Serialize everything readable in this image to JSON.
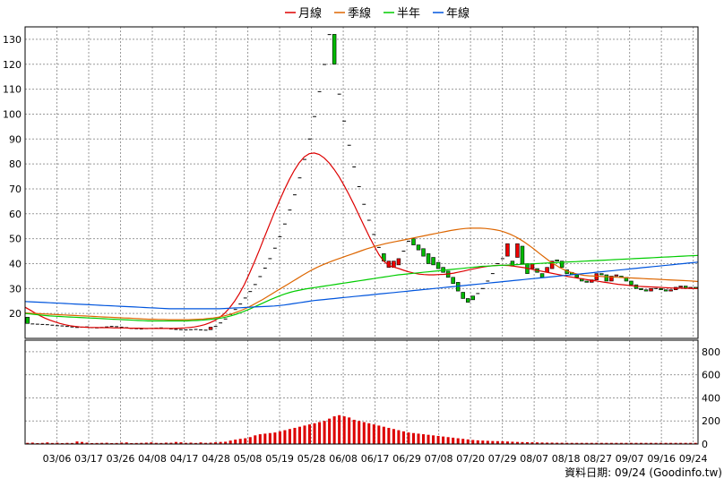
{
  "chart_data": {
    "type": "candlestick",
    "legend": {
      "placement": "top-center",
      "items": [
        {
          "name": "月線",
          "color": "#dd0000"
        },
        {
          "name": "季線",
          "color": "#dd6600"
        },
        {
          "name": "半年",
          "color": "#00cc00"
        },
        {
          "name": "年線",
          "color": "#0055dd"
        }
      ]
    },
    "price_axis": {
      "side": "left",
      "ylim": [
        10,
        135
      ],
      "ticks": [
        20,
        30,
        40,
        50,
        60,
        70,
        80,
        90,
        100,
        110,
        120,
        130
      ]
    },
    "volume_axis": {
      "side": "right",
      "ylim": [
        0,
        900
      ],
      "ticks": [
        0,
        200,
        400,
        600,
        800
      ]
    },
    "x_ticks": [
      "03/06",
      "03/17",
      "03/26",
      "04/08",
      "04/17",
      "04/28",
      "05/08",
      "05/19",
      "05/28",
      "06/08",
      "06/17",
      "06/29",
      "07/08",
      "07/20",
      "07/29",
      "08/07",
      "08/18",
      "08/27",
      "09/07",
      "09/16",
      "09/24"
    ],
    "footer": "資料日期: 09/24 (Goodinfo.tw)",
    "grid": true,
    "colors": {
      "up": "#ee0000",
      "down": "#00bb00",
      "volume": "#dd0000",
      "grid": "#999999"
    },
    "candles": [
      [
        18.5,
        16.0
      ],
      [
        15.8,
        15.8
      ],
      [
        15.7,
        15.7
      ],
      [
        15.6,
        15.6
      ],
      [
        15.5,
        15.5
      ],
      [
        15.3,
        15.3
      ],
      [
        15.1,
        15.1
      ],
      [
        15.0,
        15.0
      ],
      [
        14.8,
        14.8
      ],
      [
        14.6,
        14.6
      ],
      [
        14.4,
        14.4
      ],
      [
        14.5,
        14.5
      ],
      [
        14.6,
        14.6
      ],
      [
        14.3,
        14.3
      ],
      [
        14.2,
        14.2
      ],
      [
        14.4,
        14.4
      ],
      [
        14.6,
        14.6
      ],
      [
        14.8,
        14.8
      ],
      [
        14.7,
        14.7
      ],
      [
        14.5,
        14.5
      ],
      [
        14.3,
        14.3
      ],
      [
        14.0,
        14.0
      ],
      [
        13.9,
        13.9
      ],
      [
        13.8,
        13.8
      ],
      [
        13.9,
        13.9
      ],
      [
        14.0,
        14.0
      ],
      [
        14.1,
        14.1
      ],
      [
        14.2,
        14.2
      ],
      [
        14.0,
        14.0
      ],
      [
        13.8,
        13.8
      ],
      [
        13.6,
        13.6
      ],
      [
        13.5,
        13.5
      ],
      [
        13.4,
        13.4
      ],
      [
        13.5,
        13.5
      ],
      [
        13.6,
        13.6
      ],
      [
        13.4,
        13.4
      ],
      [
        13.3,
        13.3
      ],
      [
        13.5,
        14.5
      ],
      [
        14.8,
        14.8
      ],
      [
        16.2,
        16.2
      ],
      [
        17.8,
        17.8
      ],
      [
        19.6,
        19.6
      ],
      [
        21.6,
        21.6
      ],
      [
        23.8,
        23.8
      ],
      [
        26.2,
        26.2
      ],
      [
        28.8,
        28.8
      ],
      [
        31.6,
        31.6
      ],
      [
        34.8,
        34.8
      ],
      [
        38.2,
        38.2
      ],
      [
        42.0,
        42.0
      ],
      [
        46.2,
        46.2
      ],
      [
        50.8,
        50.8
      ],
      [
        55.9,
        55.9
      ],
      [
        61.5,
        61.5
      ],
      [
        67.6,
        67.6
      ],
      [
        74.4,
        74.4
      ],
      [
        81.8,
        81.8
      ],
      [
        90.0,
        90.0
      ],
      [
        99.0,
        99.0
      ],
      [
        109.0,
        109.0
      ],
      [
        119.9,
        119.9
      ],
      [
        131.9,
        131.9
      ],
      [
        132.0,
        120.0
      ],
      [
        108.0,
        108.0
      ],
      [
        97.2,
        97.2
      ],
      [
        87.5,
        87.5
      ],
      [
        78.8,
        78.8
      ],
      [
        70.9,
        70.9
      ],
      [
        63.8,
        63.8
      ],
      [
        57.4,
        57.4
      ],
      [
        51.7,
        51.7
      ],
      [
        46.5,
        46.5
      ],
      [
        44.0,
        41.0
      ],
      [
        38.5,
        41.0
      ],
      [
        38.5,
        41.0
      ],
      [
        39.5,
        42.0
      ],
      [
        45.0,
        45.0
      ],
      [
        49.0,
        49.0
      ],
      [
        50.0,
        47.5
      ],
      [
        47.5,
        45.5
      ],
      [
        46.0,
        43.0
      ],
      [
        44.0,
        40.0
      ],
      [
        42.5,
        39.5
      ],
      [
        40.5,
        38.0
      ],
      [
        38.5,
        36.5
      ],
      [
        37.0,
        34.5
      ],
      [
        34.5,
        32.0
      ],
      [
        32.5,
        29.0
      ],
      [
        28.5,
        26.0
      ],
      [
        26.0,
        24.5
      ],
      [
        27.0,
        25.5
      ],
      [
        28.0,
        28.0
      ],
      [
        30.0,
        30.0
      ],
      [
        33.0,
        33.0
      ],
      [
        36.0,
        36.0
      ],
      [
        40.0,
        40.0
      ],
      [
        42.0,
        42.0
      ],
      [
        43.0,
        48.0
      ],
      [
        41.0,
        39.0
      ],
      [
        42.5,
        48.0
      ],
      [
        47.0,
        40.0
      ],
      [
        40.0,
        36.0
      ],
      [
        38.0,
        40.0
      ],
      [
        38.0,
        36.5
      ],
      [
        36.0,
        34.5
      ],
      [
        36.5,
        38.5
      ],
      [
        38.0,
        41.0
      ],
      [
        41.5,
        41.0
      ],
      [
        41.0,
        38.5
      ],
      [
        37.5,
        36.0
      ],
      [
        36.5,
        35.5
      ],
      [
        35.5,
        34.5
      ],
      [
        34.0,
        33.0
      ],
      [
        33.0,
        32.5
      ],
      [
        32.5,
        33.5
      ],
      [
        33.5,
        36.0
      ],
      [
        36.0,
        35.5
      ],
      [
        35.5,
        33.0
      ],
      [
        33.0,
        35.0
      ],
      [
        35.0,
        35.5
      ],
      [
        35.0,
        34.5
      ],
      [
        34.5,
        33.0
      ],
      [
        33.0,
        31.5
      ],
      [
        31.5,
        30.0
      ],
      [
        30.0,
        29.5
      ],
      [
        29.5,
        29.0
      ],
      [
        29.0,
        30.0
      ],
      [
        30.0,
        30.0
      ],
      [
        30.0,
        29.5
      ],
      [
        29.5,
        29.0
      ],
      [
        29.0,
        29.5
      ],
      [
        29.5,
        30.5
      ],
      [
        30.5,
        31.0
      ],
      [
        31.0,
        30.0
      ],
      [
        30.0,
        30.5
      ],
      [
        30.5,
        30.0
      ]
    ],
    "volumes": [
      10,
      12,
      8,
      10,
      14,
      9,
      11,
      8,
      10,
      9,
      22,
      18,
      12,
      8,
      9,
      10,
      11,
      8,
      9,
      12,
      14,
      8,
      9,
      10,
      12,
      14,
      10,
      9,
      12,
      11,
      18,
      15,
      10,
      12,
      9,
      14,
      10,
      12,
      15,
      18,
      20,
      30,
      38,
      45,
      50,
      60,
      75,
      85,
      90,
      95,
      100,
      110,
      120,
      130,
      140,
      150,
      160,
      170,
      180,
      190,
      200,
      220,
      240,
      250,
      240,
      230,
      210,
      200,
      190,
      180,
      170,
      160,
      150,
      140,
      130,
      120,
      110,
      100,
      95,
      90,
      85,
      80,
      75,
      70,
      65,
      60,
      55,
      50,
      45,
      40,
      35,
      32,
      30,
      28,
      26,
      25,
      24,
      22,
      20,
      18,
      17,
      16,
      15,
      14,
      13,
      12,
      12,
      11,
      11,
      10,
      10,
      10,
      10,
      10,
      10,
      10,
      10,
      10,
      10,
      10,
      10,
      10,
      10,
      10,
      10,
      10,
      10,
      10,
      10,
      10,
      10,
      10,
      10,
      10,
      10,
      10
    ],
    "series": [
      {
        "name": "月線",
        "color": "#dd0000",
        "values": [
          22.5,
          21.4,
          20.2,
          19.1,
          18.1,
          17.3,
          16.6,
          16.0,
          15.5,
          15.1,
          14.8,
          14.6,
          14.5,
          14.4,
          14.4,
          14.3,
          14.3,
          14.3,
          14.2,
          14.2,
          14.2,
          14.1,
          14.1,
          14.1,
          14.0,
          14.0,
          14.0,
          14.0,
          14.0,
          14.0,
          14.0,
          14.1,
          14.2,
          14.4,
          14.6,
          15.0,
          15.5,
          16.2,
          17.1,
          18.4,
          20.0,
          22.2,
          24.8,
          28.0,
          31.7,
          36.0,
          40.6,
          45.5,
          50.5,
          55.5,
          60.4,
          65.1,
          69.6,
          73.7,
          77.4,
          80.5,
          82.8,
          84.1,
          84.4,
          83.8,
          82.4,
          80.4,
          77.8,
          74.8,
          71.4,
          67.6,
          63.6,
          59.4,
          55.2,
          51.1,
          47.2,
          43.6,
          40.9,
          39.2,
          38.6,
          38.0,
          37.3,
          36.7,
          36.2,
          35.8,
          35.6,
          35.5,
          35.5,
          35.6,
          35.7,
          35.9,
          36.2,
          36.6,
          37.0,
          37.5,
          37.9,
          38.3,
          38.7,
          39.0,
          39.2,
          39.3,
          39.3,
          39.2,
          39.0,
          38.7,
          38.4,
          38.0,
          37.6,
          37.2,
          36.8,
          36.4,
          36.0,
          35.6,
          35.2,
          34.8,
          34.5,
          34.1,
          33.8,
          33.5,
          33.2,
          32.9,
          32.6,
          32.3,
          32.0,
          31.7,
          31.5,
          31.3,
          31.1,
          30.9,
          30.8,
          30.7,
          30.6,
          30.5,
          30.4,
          30.3,
          30.2,
          30.2,
          30.1,
          30.1,
          30.0,
          30.0
        ]
      },
      {
        "name": "季線",
        "color": "#dd6600",
        "values": [
          20.2,
          20.1,
          20.0,
          19.9,
          19.8,
          19.7,
          19.6,
          19.5,
          19.4,
          19.3,
          19.2,
          19.1,
          19.0,
          18.9,
          18.8,
          18.7,
          18.6,
          18.5,
          18.4,
          18.3,
          18.2,
          18.1,
          18.0,
          17.9,
          17.8,
          17.7,
          17.7,
          17.6,
          17.6,
          17.5,
          17.5,
          17.5,
          17.5,
          17.5,
          17.6,
          17.7,
          17.8,
          18.0,
          18.2,
          18.5,
          18.9,
          19.4,
          20.0,
          20.7,
          21.5,
          22.4,
          23.4,
          24.5,
          25.6,
          26.8,
          28.0,
          29.2,
          30.4,
          31.6,
          32.8,
          34.0,
          35.2,
          36.4,
          37.5,
          38.5,
          39.4,
          40.2,
          41.0,
          41.7,
          42.4,
          43.1,
          43.8,
          44.5,
          45.2,
          45.9,
          46.5,
          47.1,
          47.6,
          48.1,
          48.5,
          48.9,
          49.3,
          49.7,
          50.1,
          50.5,
          50.9,
          51.3,
          51.7,
          52.1,
          52.5,
          52.9,
          53.3,
          53.6,
          53.9,
          54.1,
          54.2,
          54.2,
          54.2,
          54.1,
          53.9,
          53.6,
          53.2,
          52.6,
          51.8,
          50.9,
          49.8,
          48.5,
          47.1,
          45.6,
          44.0,
          42.5,
          41.0,
          39.7,
          38.5,
          37.5,
          36.7,
          36.1,
          35.6,
          35.3,
          35.1,
          35.0,
          34.9,
          34.8,
          34.7,
          34.6,
          34.5,
          34.4,
          34.3,
          34.2,
          34.1,
          34.0,
          33.9,
          33.8,
          33.7,
          33.6,
          33.5,
          33.4,
          33.3,
          33.2,
          33.1,
          33.0,
          32.8
        ]
      },
      {
        "name": "半年",
        "color": "#00cc00",
        "values": [
          20.0,
          19.8,
          19.6,
          19.4,
          19.2,
          19.0,
          18.9,
          18.8,
          18.7,
          18.6,
          18.5,
          18.4,
          18.3,
          18.2,
          18.1,
          18.0,
          17.9,
          17.8,
          17.7,
          17.6,
          17.5,
          17.4,
          17.3,
          17.2,
          17.1,
          17.0,
          17.0,
          17.0,
          17.0,
          17.0,
          17.0,
          17.0,
          17.0,
          17.0,
          17.1,
          17.2,
          17.3,
          17.5,
          17.7,
          17.9,
          18.2,
          18.6,
          19.1,
          19.7,
          20.4,
          21.2,
          22.0,
          22.9,
          23.8,
          24.7,
          25.6,
          26.4,
          27.2,
          27.9,
          28.5,
          29.0,
          29.4,
          29.8,
          30.1,
          30.4,
          30.7,
          31.0,
          31.3,
          31.6,
          31.9,
          32.2,
          32.5,
          32.8,
          33.1,
          33.4,
          33.7,
          34.0,
          34.3,
          34.6,
          34.9,
          35.2,
          35.5,
          35.7,
          35.9,
          36.1,
          36.3,
          36.5,
          36.7,
          36.9,
          37.1,
          37.3,
          37.5,
          37.7,
          37.9,
          38.1,
          38.3,
          38.5,
          38.7,
          38.9,
          39.0,
          39.1,
          39.2,
          39.3,
          39.4,
          39.5,
          39.6,
          39.7,
          39.8,
          39.9,
          40.0,
          40.1,
          40.2,
          40.3,
          40.4,
          40.5,
          40.6,
          40.7,
          40.8,
          40.9,
          41.0,
          41.1,
          41.2,
          41.3,
          41.4,
          41.5,
          41.6,
          41.7,
          41.8,
          41.9,
          42.0,
          42.1,
          42.2,
          42.3,
          42.4,
          42.5,
          42.6,
          42.7,
          42.8,
          42.9,
          43.0,
          43.1,
          43.2,
          43.3
        ]
      },
      {
        "name": "年線",
        "color": "#0055dd",
        "values": [
          24.8,
          24.7,
          24.6,
          24.5,
          24.4,
          24.3,
          24.2,
          24.1,
          24.0,
          23.9,
          23.8,
          23.7,
          23.6,
          23.5,
          23.4,
          23.3,
          23.2,
          23.1,
          23.0,
          22.9,
          22.8,
          22.7,
          22.6,
          22.5,
          22.4,
          22.3,
          22.2,
          22.1,
          22.0,
          21.9,
          21.9,
          21.9,
          21.9,
          21.9,
          21.9,
          21.9,
          21.9,
          21.9,
          21.9,
          21.9,
          22.0,
          22.1,
          22.2,
          22.3,
          22.4,
          22.5,
          22.6,
          22.7,
          22.8,
          22.9,
          23.0,
          23.2,
          23.4,
          23.7,
          24.0,
          24.3,
          24.6,
          24.9,
          25.2,
          25.4,
          25.6,
          25.8,
          26.0,
          26.2,
          26.4,
          26.6,
          26.8,
          27.0,
          27.2,
          27.4,
          27.6,
          27.8,
          28.0,
          28.2,
          28.4,
          28.6,
          28.8,
          29.0,
          29.2,
          29.4,
          29.6,
          29.8,
          30.0,
          30.2,
          30.4,
          30.6,
          30.8,
          31.0,
          31.2,
          31.4,
          31.6,
          31.8,
          32.0,
          32.2,
          32.4,
          32.6,
          32.8,
          33.0,
          33.2,
          33.4,
          33.6,
          33.8,
          34.0,
          34.2,
          34.4,
          34.6,
          34.8,
          35.0,
          35.2,
          35.4,
          35.6,
          35.8,
          36.0,
          36.2,
          36.4,
          36.6,
          36.8,
          37.0,
          37.2,
          37.4,
          37.6,
          37.8,
          38.0,
          38.2,
          38.4,
          38.6,
          38.8,
          39.0,
          39.2,
          39.4,
          39.6,
          39.8,
          40.0,
          40.2,
          40.4,
          40.6
        ]
      }
    ]
  }
}
